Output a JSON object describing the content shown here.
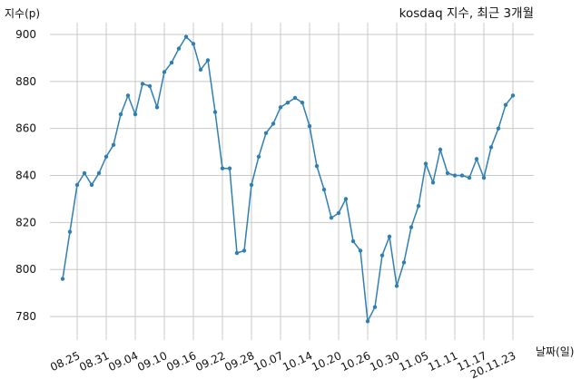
{
  "chart_data": {
    "type": "line",
    "title": "kosdaq 지수, 최근 3개월",
    "ylabel": "지수(p)",
    "xlabel": "날짜(일)",
    "ylim": [
      770,
      905
    ],
    "yticks": [
      780,
      800,
      820,
      840,
      860,
      880,
      900
    ],
    "grid": true,
    "colors": {
      "line": "#2f7fb5",
      "grid": "#c8c8c8"
    },
    "xticks": [
      {
        "i": 2,
        "label": "08.25"
      },
      {
        "i": 6,
        "label": "08.31"
      },
      {
        "i": 10,
        "label": "09.04"
      },
      {
        "i": 14,
        "label": "09.10"
      },
      {
        "i": 18,
        "label": "09.16"
      },
      {
        "i": 22,
        "label": "09.22"
      },
      {
        "i": 26,
        "label": "09.28"
      },
      {
        "i": 30,
        "label": "10.07"
      },
      {
        "i": 34,
        "label": "10.14"
      },
      {
        "i": 38,
        "label": "10.20"
      },
      {
        "i": 42,
        "label": "10.26"
      },
      {
        "i": 46,
        "label": "10.30"
      },
      {
        "i": 50,
        "label": "11.05"
      },
      {
        "i": 54,
        "label": "11.11"
      },
      {
        "i": 58,
        "label": "11.17"
      },
      {
        "i": 62,
        "label": "20.11.23"
      }
    ],
    "values": [
      796,
      816,
      836,
      841,
      836,
      841,
      848,
      853,
      866,
      874,
      866,
      879,
      878,
      869,
      884,
      888,
      894,
      899,
      896,
      885,
      889,
      867,
      843,
      843,
      807,
      808,
      836,
      848,
      858,
      862,
      869,
      871,
      873,
      871,
      861,
      844,
      834,
      822,
      824,
      830,
      812,
      808,
      778,
      784,
      806,
      814,
      793,
      803,
      818,
      827,
      845,
      837,
      851,
      841,
      840,
      840,
      839,
      847,
      839,
      852,
      860,
      870,
      874
    ]
  }
}
